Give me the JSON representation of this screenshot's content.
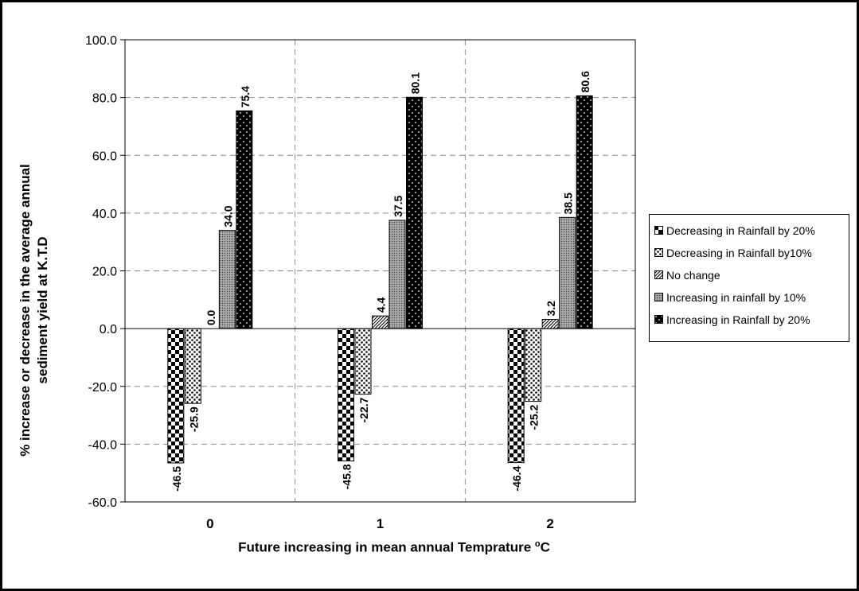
{
  "chart_data": {
    "type": "bar",
    "title": "",
    "ylabel_line1": "% increase or decrease in the average annual",
    "ylabel_line2": "sediment yield at K.T.D",
    "xlabel": "Future increasing in mean annual Temprature",
    "xlabel_sup": "o",
    "xlabel_suffix": "C",
    "categories": [
      "0",
      "1",
      "2"
    ],
    "ylim": [
      -60,
      100
    ],
    "yticks": [
      "100.0",
      "80.0",
      "60.0",
      "40.0",
      "20.0",
      "0.0",
      "-20.0",
      "-40.0",
      "-60.0"
    ],
    "grid": true,
    "legend_position": "right",
    "series": [
      {
        "name": "Decreasing in Rainfall by 20%",
        "values": [
          -46.5,
          -45.8,
          -46.4
        ],
        "labels": [
          "-46.5",
          "-45.8",
          "-46.4"
        ],
        "pattern": "checker"
      },
      {
        "name": "Decreasing in Rainfall by10%",
        "values": [
          -25.9,
          -22.7,
          -25.2
        ],
        "labels": [
          "-25.9",
          "-22.7",
          "-25.2"
        ],
        "pattern": "dots"
      },
      {
        "name": "No change",
        "values": [
          0.0,
          4.4,
          3.2
        ],
        "labels": [
          "0.0",
          "4.4",
          "3.2"
        ],
        "pattern": "diagonal"
      },
      {
        "name": "Increasing in rainfall by 10%",
        "values": [
          34.0,
          37.5,
          38.5
        ],
        "labels": [
          "34.0",
          "37.5",
          "38.5"
        ],
        "pattern": "grey"
      },
      {
        "name": "Increasing in Rainfall by 20%",
        "values": [
          75.4,
          80.1,
          80.6
        ],
        "labels": [
          "75.4",
          "80.1",
          "80.6"
        ],
        "pattern": "blackdots"
      }
    ]
  }
}
